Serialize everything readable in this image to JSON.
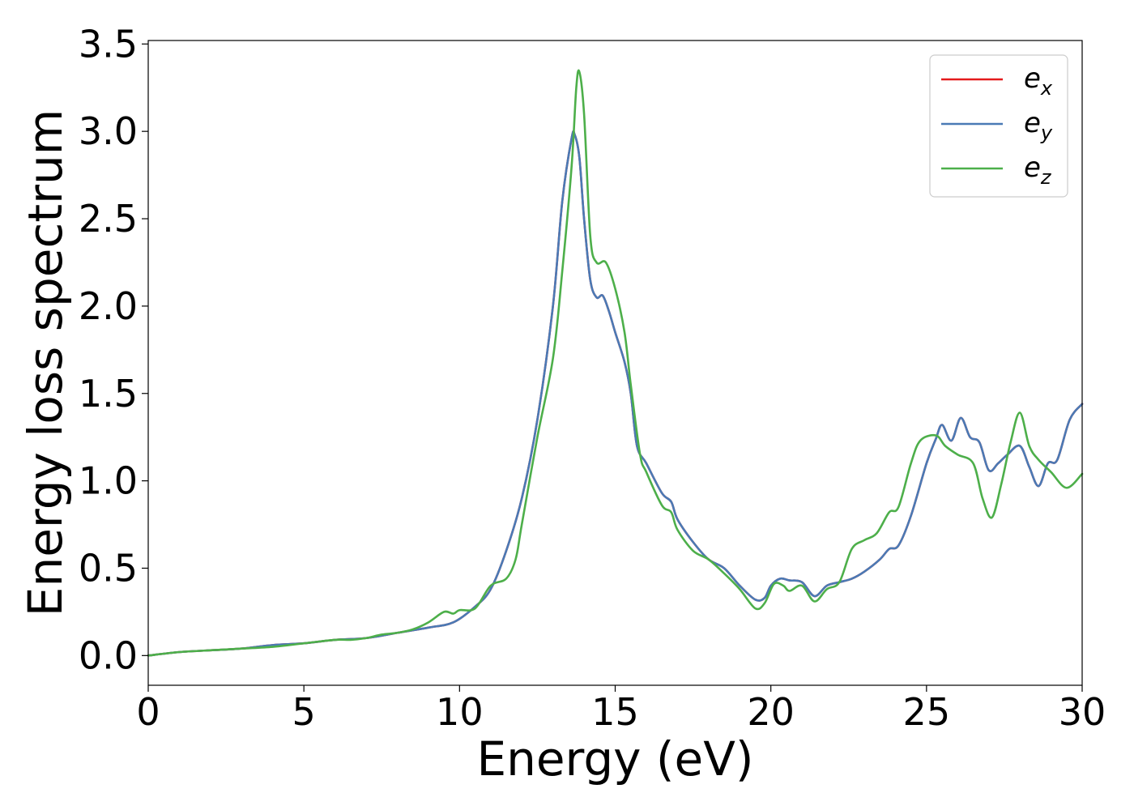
{
  "chart_data": {
    "type": "line",
    "xlabel": "Energy (eV)",
    "ylabel": "Energy loss spectrum",
    "xlim": [
      0,
      30
    ],
    "ylim": [
      -0.17,
      3.52
    ],
    "xticks": [
      0,
      5,
      10,
      15,
      20,
      25,
      30
    ],
    "yticks": [
      0.0,
      0.5,
      1.0,
      1.5,
      2.0,
      2.5,
      3.0,
      3.5
    ],
    "xtick_labels": [
      "0",
      "5",
      "10",
      "15",
      "20",
      "25",
      "30"
    ],
    "ytick_labels": [
      "0.0",
      "0.5",
      "1.0",
      "1.5",
      "2.0",
      "2.5",
      "3.0",
      "3.5"
    ],
    "grid": false,
    "legend_position": "top-right",
    "series": [
      {
        "name": "e_x",
        "legend_base": "e",
        "legend_sub": "x",
        "color": "#e41a1c",
        "points": [
          [
            0,
            0.0
          ],
          [
            1,
            0.02
          ],
          [
            2,
            0.03
          ],
          [
            3,
            0.04
          ],
          [
            4,
            0.06
          ],
          [
            5,
            0.07
          ],
          [
            6,
            0.09
          ],
          [
            7,
            0.1
          ],
          [
            8,
            0.13
          ],
          [
            9,
            0.16
          ],
          [
            9.8,
            0.19
          ],
          [
            10.5,
            0.28
          ],
          [
            11,
            0.38
          ],
          [
            11.5,
            0.6
          ],
          [
            12,
            0.9
          ],
          [
            12.5,
            1.35
          ],
          [
            13,
            2.0
          ],
          [
            13.3,
            2.6
          ],
          [
            13.6,
            2.96
          ],
          [
            13.7,
            2.98
          ],
          [
            13.85,
            2.85
          ],
          [
            14,
            2.5
          ],
          [
            14.2,
            2.15
          ],
          [
            14.4,
            2.05
          ],
          [
            14.6,
            2.06
          ],
          [
            14.8,
            1.97
          ],
          [
            15,
            1.85
          ],
          [
            15.3,
            1.68
          ],
          [
            15.5,
            1.5
          ],
          [
            15.7,
            1.2
          ],
          [
            16,
            1.1
          ],
          [
            16.5,
            0.93
          ],
          [
            16.8,
            0.88
          ],
          [
            17,
            0.78
          ],
          [
            17.5,
            0.65
          ],
          [
            18,
            0.55
          ],
          [
            18.5,
            0.5
          ],
          [
            19,
            0.4
          ],
          [
            19.5,
            0.32
          ],
          [
            19.8,
            0.33
          ],
          [
            20,
            0.4
          ],
          [
            20.3,
            0.44
          ],
          [
            20.6,
            0.43
          ],
          [
            21,
            0.42
          ],
          [
            21.4,
            0.34
          ],
          [
            21.8,
            0.4
          ],
          [
            22.2,
            0.42
          ],
          [
            22.6,
            0.44
          ],
          [
            23,
            0.48
          ],
          [
            23.5,
            0.55
          ],
          [
            23.8,
            0.61
          ],
          [
            24.1,
            0.63
          ],
          [
            24.5,
            0.8
          ],
          [
            25,
            1.1
          ],
          [
            25.3,
            1.24
          ],
          [
            25.5,
            1.32
          ],
          [
            25.8,
            1.23
          ],
          [
            26.1,
            1.36
          ],
          [
            26.4,
            1.25
          ],
          [
            26.7,
            1.22
          ],
          [
            27,
            1.06
          ],
          [
            27.3,
            1.1
          ],
          [
            27.6,
            1.15
          ],
          [
            28,
            1.2
          ],
          [
            28.3,
            1.08
          ],
          [
            28.6,
            0.97
          ],
          [
            28.9,
            1.1
          ],
          [
            29.2,
            1.12
          ],
          [
            29.6,
            1.35
          ],
          [
            30,
            1.44
          ]
        ]
      },
      {
        "name": "e_y",
        "legend_base": "e",
        "legend_sub": "y",
        "color": "#4a7ab5",
        "points": [
          [
            0,
            0.0
          ],
          [
            1,
            0.02
          ],
          [
            2,
            0.03
          ],
          [
            3,
            0.04
          ],
          [
            4,
            0.06
          ],
          [
            5,
            0.07
          ],
          [
            6,
            0.09
          ],
          [
            7,
            0.1
          ],
          [
            8,
            0.13
          ],
          [
            9,
            0.16
          ],
          [
            9.8,
            0.19
          ],
          [
            10.5,
            0.28
          ],
          [
            11,
            0.38
          ],
          [
            11.5,
            0.6
          ],
          [
            12,
            0.9
          ],
          [
            12.5,
            1.35
          ],
          [
            13,
            2.0
          ],
          [
            13.3,
            2.6
          ],
          [
            13.6,
            2.96
          ],
          [
            13.7,
            2.98
          ],
          [
            13.85,
            2.85
          ],
          [
            14,
            2.5
          ],
          [
            14.2,
            2.15
          ],
          [
            14.4,
            2.05
          ],
          [
            14.6,
            2.06
          ],
          [
            14.8,
            1.97
          ],
          [
            15,
            1.85
          ],
          [
            15.3,
            1.68
          ],
          [
            15.5,
            1.5
          ],
          [
            15.7,
            1.2
          ],
          [
            16,
            1.1
          ],
          [
            16.5,
            0.93
          ],
          [
            16.8,
            0.88
          ],
          [
            17,
            0.78
          ],
          [
            17.5,
            0.65
          ],
          [
            18,
            0.55
          ],
          [
            18.5,
            0.5
          ],
          [
            19,
            0.4
          ],
          [
            19.5,
            0.32
          ],
          [
            19.8,
            0.33
          ],
          [
            20,
            0.4
          ],
          [
            20.3,
            0.44
          ],
          [
            20.6,
            0.43
          ],
          [
            21,
            0.42
          ],
          [
            21.4,
            0.34
          ],
          [
            21.8,
            0.4
          ],
          [
            22.2,
            0.42
          ],
          [
            22.6,
            0.44
          ],
          [
            23,
            0.48
          ],
          [
            23.5,
            0.55
          ],
          [
            23.8,
            0.61
          ],
          [
            24.1,
            0.63
          ],
          [
            24.5,
            0.8
          ],
          [
            25,
            1.1
          ],
          [
            25.3,
            1.24
          ],
          [
            25.5,
            1.32
          ],
          [
            25.8,
            1.23
          ],
          [
            26.1,
            1.36
          ],
          [
            26.4,
            1.25
          ],
          [
            26.7,
            1.22
          ],
          [
            27,
            1.06
          ],
          [
            27.3,
            1.1
          ],
          [
            27.6,
            1.15
          ],
          [
            28,
            1.2
          ],
          [
            28.3,
            1.08
          ],
          [
            28.6,
            0.97
          ],
          [
            28.9,
            1.1
          ],
          [
            29.2,
            1.12
          ],
          [
            29.6,
            1.35
          ],
          [
            30,
            1.44
          ]
        ]
      },
      {
        "name": "e_z",
        "legend_base": "e",
        "legend_sub": "z",
        "color": "#4daf4a",
        "points": [
          [
            0,
            0.0
          ],
          [
            1,
            0.02
          ],
          [
            2,
            0.03
          ],
          [
            3,
            0.04
          ],
          [
            4,
            0.05
          ],
          [
            5,
            0.07
          ],
          [
            6,
            0.09
          ],
          [
            6.5,
            0.09
          ],
          [
            7,
            0.1
          ],
          [
            7.5,
            0.12
          ],
          [
            8,
            0.13
          ],
          [
            8.5,
            0.15
          ],
          [
            9,
            0.19
          ],
          [
            9.5,
            0.25
          ],
          [
            9.8,
            0.24
          ],
          [
            10,
            0.26
          ],
          [
            10.5,
            0.27
          ],
          [
            11,
            0.4
          ],
          [
            11.5,
            0.44
          ],
          [
            11.8,
            0.55
          ],
          [
            12,
            0.75
          ],
          [
            12.5,
            1.25
          ],
          [
            13,
            1.7
          ],
          [
            13.3,
            2.2
          ],
          [
            13.6,
            2.8
          ],
          [
            13.75,
            3.25
          ],
          [
            13.85,
            3.34
          ],
          [
            14,
            3.1
          ],
          [
            14.2,
            2.4
          ],
          [
            14.4,
            2.25
          ],
          [
            14.7,
            2.25
          ],
          [
            15,
            2.1
          ],
          [
            15.3,
            1.85
          ],
          [
            15.5,
            1.55
          ],
          [
            15.8,
            1.15
          ],
          [
            16,
            1.05
          ],
          [
            16.5,
            0.86
          ],
          [
            16.8,
            0.82
          ],
          [
            17,
            0.72
          ],
          [
            17.5,
            0.6
          ],
          [
            18,
            0.55
          ],
          [
            18.5,
            0.47
          ],
          [
            19,
            0.38
          ],
          [
            19.5,
            0.27
          ],
          [
            19.8,
            0.3
          ],
          [
            20.1,
            0.41
          ],
          [
            20.4,
            0.4
          ],
          [
            20.6,
            0.37
          ],
          [
            21,
            0.4
          ],
          [
            21.4,
            0.31
          ],
          [
            21.8,
            0.38
          ],
          [
            22.2,
            0.42
          ],
          [
            22.6,
            0.61
          ],
          [
            23,
            0.66
          ],
          [
            23.4,
            0.7
          ],
          [
            23.8,
            0.82
          ],
          [
            24.1,
            0.85
          ],
          [
            24.5,
            1.1
          ],
          [
            24.8,
            1.23
          ],
          [
            25.3,
            1.26
          ],
          [
            25.6,
            1.2
          ],
          [
            26,
            1.15
          ],
          [
            26.5,
            1.1
          ],
          [
            26.8,
            0.9
          ],
          [
            27.1,
            0.79
          ],
          [
            27.4,
            0.98
          ],
          [
            27.7,
            1.22
          ],
          [
            28,
            1.39
          ],
          [
            28.3,
            1.2
          ],
          [
            28.6,
            1.12
          ],
          [
            29,
            1.05
          ],
          [
            29.5,
            0.96
          ],
          [
            30,
            1.04
          ]
        ]
      }
    ]
  }
}
